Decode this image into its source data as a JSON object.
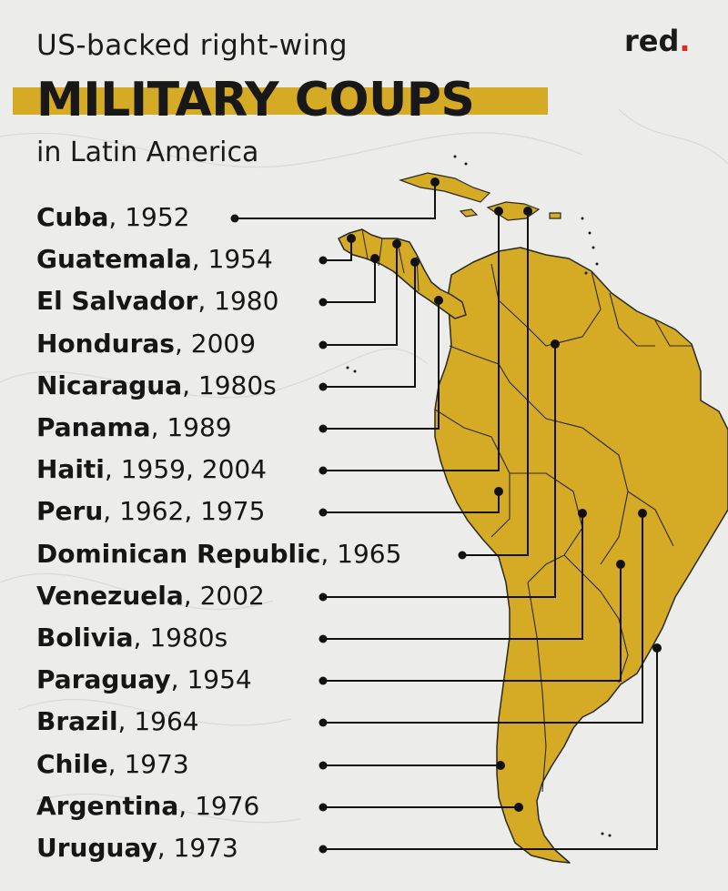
{
  "header": {
    "line1": "US-backed right-wing",
    "line2": "MILITARY COUPS",
    "line3": "in Latin America"
  },
  "brand": {
    "name": "red",
    "dot": "."
  },
  "colors": {
    "map_fill": "#d5aa25",
    "band": "#d5aa25",
    "background": "#ececea",
    "ink": "#111111",
    "brand_dot": "#e12a1d"
  },
  "coups": [
    {
      "country": "Cuba",
      "years": ", 1952"
    },
    {
      "country": "Guatemala",
      "years": ", 1954"
    },
    {
      "country": "El Salvador",
      "years": ", 1980"
    },
    {
      "country": "Honduras",
      "years": ", 2009"
    },
    {
      "country": "Nicaragua",
      "years": ", 1980s"
    },
    {
      "country": "Panama",
      "years": ", 1989"
    },
    {
      "country": "Haiti",
      "years": ", 1959, 2004"
    },
    {
      "country": "Peru",
      "years": ", 1962, 1975"
    },
    {
      "country": "Dominican Republic",
      "years": ", 1965"
    },
    {
      "country": "Venezuela",
      "years": ", 2002"
    },
    {
      "country": "Bolivia",
      "years": ", 1980s"
    },
    {
      "country": "Paraguay",
      "years": ", 1954"
    },
    {
      "country": "Brazil",
      "years": ", 1964"
    },
    {
      "country": "Chile",
      "years": ", 1973"
    },
    {
      "country": "Argentina",
      "years": ", 1976"
    },
    {
      "country": "Uruguay",
      "years": ", 1973"
    }
  ]
}
